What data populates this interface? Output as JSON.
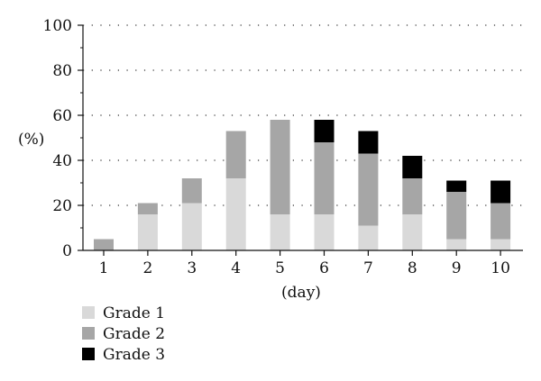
{
  "chart_data": {
    "type": "bar",
    "stacked": true,
    "categories": [
      "1",
      "2",
      "3",
      "4",
      "5",
      "6",
      "7",
      "8",
      "9",
      "10"
    ],
    "series": [
      {
        "name": "Grade 1",
        "color": "#d9d9d9",
        "values": [
          0,
          16,
          21,
          32,
          16,
          16,
          11,
          16,
          5,
          5
        ]
      },
      {
        "name": "Grade 2",
        "color": "#a6a6a6",
        "values": [
          5,
          5,
          11,
          21,
          42,
          32,
          32,
          16,
          21,
          16
        ]
      },
      {
        "name": "Grade 3",
        "color": "#000000",
        "values": [
          0,
          0,
          0,
          0,
          0,
          10,
          10,
          10,
          5,
          10
        ]
      }
    ],
    "title": "",
    "xlabel": "(day)",
    "ylabel": "(%)",
    "ylim": [
      0,
      100
    ],
    "yticks": [
      0,
      20,
      40,
      60,
      80,
      100
    ],
    "grid": "horizontal dotted",
    "legend_position": "bottom-left"
  }
}
